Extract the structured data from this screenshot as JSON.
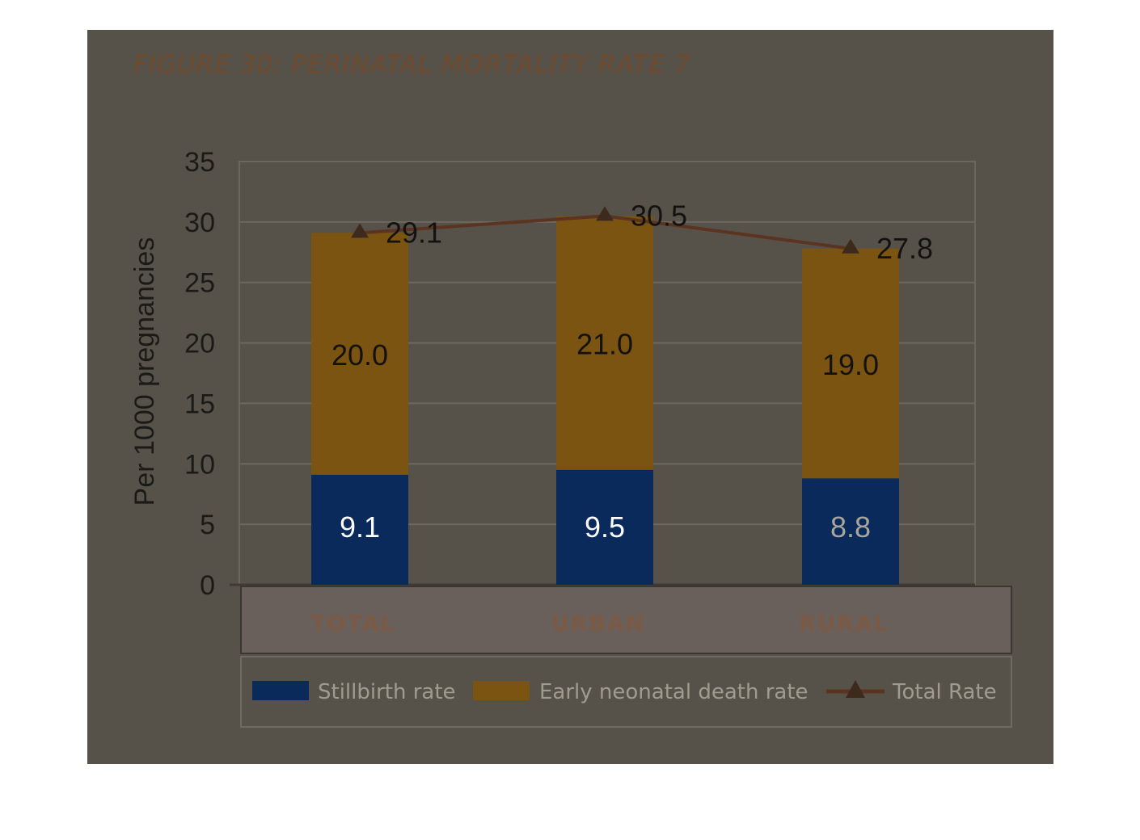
{
  "title": "FIGURE 30: PERINATAL MORTALITY RATE 7",
  "chart_data": {
    "type": "bar",
    "stacked": true,
    "categories": [
      "TOTAL",
      "URBAN",
      "RURAL"
    ],
    "series": [
      {
        "name": "Stillbirth rate",
        "kind": "bar",
        "values": [
          9.1,
          9.5,
          8.8
        ],
        "labels": [
          "9.1",
          "9.5",
          "8.8"
        ],
        "color": "#0a2a5c"
      },
      {
        "name": "Early neonatal death rate",
        "kind": "bar",
        "values": [
          20.0,
          21.0,
          19.0
        ],
        "labels": [
          "20.0",
          "21.0",
          "19.0"
        ],
        "color": "#7a5410"
      },
      {
        "name": "Total Rate",
        "kind": "line",
        "marker": "triangle",
        "values": [
          29.1,
          30.5,
          27.8
        ],
        "labels": [
          "29.1",
          "30.5",
          "27.8"
        ],
        "color": "#5a3420"
      }
    ],
    "title": "FIGURE 30: PERINATAL MORTALITY RATE 7",
    "xlabel": "",
    "ylabel": "Per 1000 pregnancies",
    "ylim": [
      0,
      35
    ],
    "yticks": [
      "0",
      "5",
      "10",
      "15",
      "20",
      "25",
      "30",
      "35"
    ],
    "grid": true,
    "legend_position": "bottom"
  },
  "colors": {
    "panel": "#56524a",
    "plot_bg": "#56524a",
    "grid": "#6c685f",
    "category_band": "#6a605b",
    "highlight_blue": "#1a78e8",
    "highlight_yellow": "#f2d21a"
  }
}
